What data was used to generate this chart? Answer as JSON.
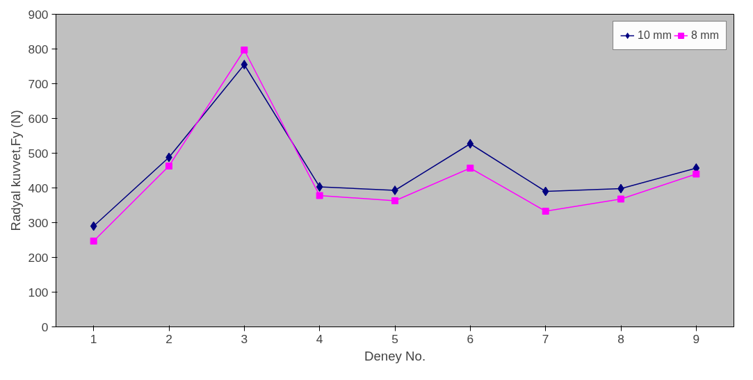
{
  "chart_data": {
    "type": "line",
    "xlabel": "Deney No.",
    "ylabel": "Radyal kuvvet,Fy (N)",
    "categories": [
      "1",
      "2",
      "3",
      "4",
      "5",
      "6",
      "7",
      "8",
      "9"
    ],
    "series": [
      {
        "name": "10 mm",
        "color": "#000080",
        "marker": "diamond",
        "values": [
          290,
          488,
          755,
          403,
          393,
          527,
          390,
          398,
          457
        ]
      },
      {
        "name": "8 mm",
        "color": "#ff00ff",
        "marker": "square",
        "values": [
          247,
          463,
          797,
          378,
          363,
          457,
          333,
          368,
          440
        ]
      }
    ],
    "ylim": [
      0,
      900
    ],
    "yticks": [
      0,
      100,
      200,
      300,
      400,
      500,
      600,
      700,
      800,
      900
    ],
    "grid": false,
    "legend": "top right",
    "line_style": "solid"
  }
}
